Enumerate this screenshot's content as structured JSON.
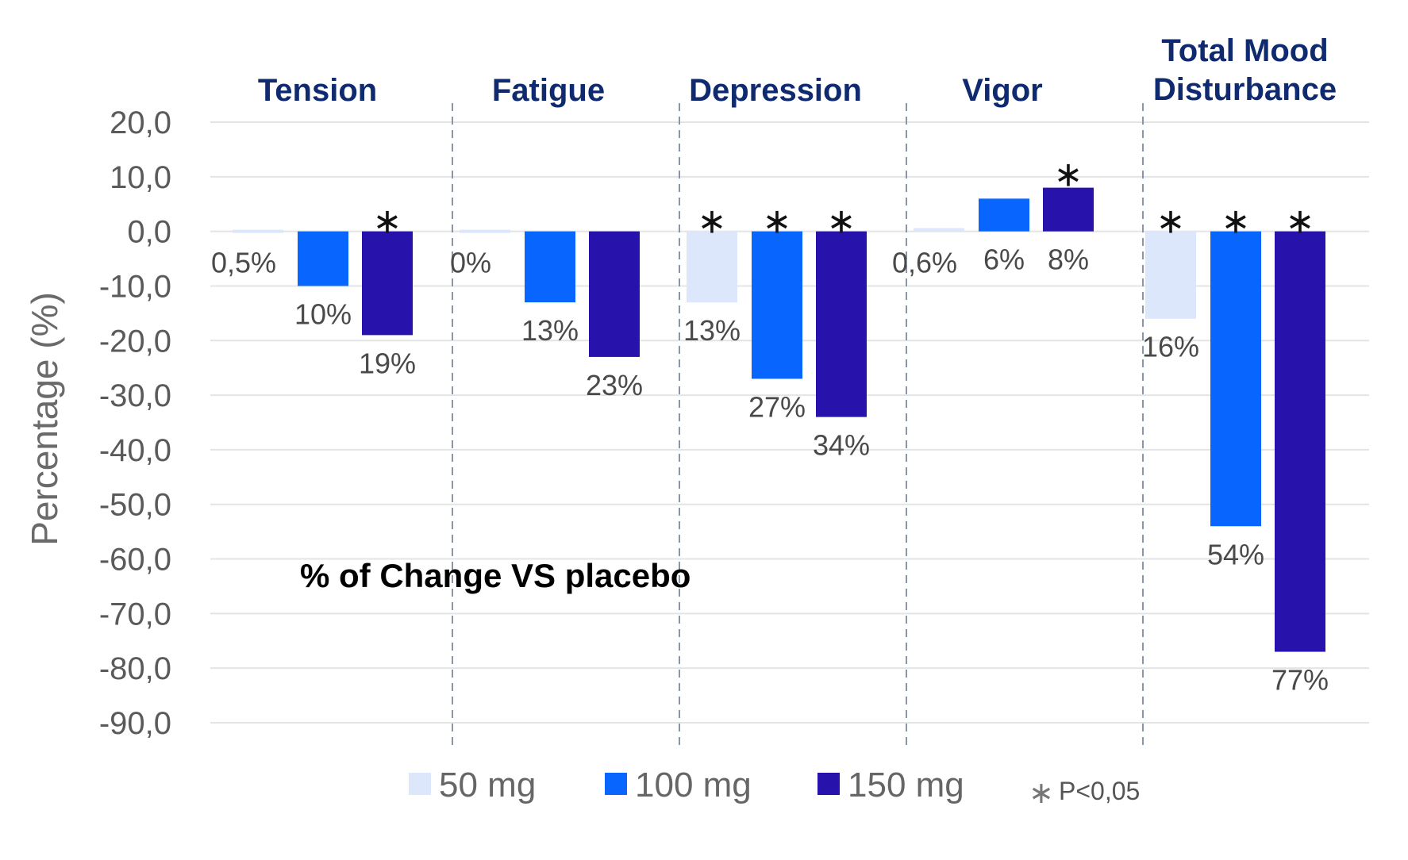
{
  "chart_data": {
    "type": "bar",
    "title": "% of Change VS placebo",
    "ylabel": "Percentage (%)",
    "xlabel": "",
    "ylim": [
      -90,
      20
    ],
    "yticks": [
      20,
      10,
      0,
      -10,
      -20,
      -30,
      -40,
      -50,
      -60,
      -70,
      -80,
      -90
    ],
    "ytick_labels": [
      "20,0",
      "10,0",
      "0,0",
      "-10,0",
      "-20,0",
      "-30,0",
      "-40,0",
      "-50,0",
      "-60,0",
      "-70,0",
      "-80,0",
      "-90,0"
    ],
    "grid": true,
    "categories": [
      [
        "Tension"
      ],
      [
        "Fatigue"
      ],
      [
        "Depression"
      ],
      [
        "Vigor"
      ],
      [
        "Total Mood",
        "Disturbance"
      ]
    ],
    "series": [
      {
        "name": "50 mg",
        "color": "#dce7fb",
        "values": [
          -0.5,
          0,
          -13,
          0.6,
          -16
        ],
        "labels": [
          "0,5%",
          "0%",
          "13%",
          "0,6%",
          "16%"
        ],
        "significant": [
          false,
          false,
          true,
          false,
          true
        ]
      },
      {
        "name": "100 mg",
        "color": "#0866ff",
        "values": [
          -10,
          -13,
          -27,
          6,
          -54
        ],
        "labels": [
          "10%",
          "13%",
          "27%",
          "6%",
          "54%"
        ],
        "significant": [
          false,
          false,
          true,
          false,
          true
        ]
      },
      {
        "name": "150 mg",
        "color": "#2712ac",
        "values": [
          -19,
          -23,
          -34,
          8,
          -77
        ],
        "labels": [
          "19%",
          "23%",
          "34%",
          "8%",
          "77%"
        ],
        "significant": [
          true,
          false,
          true,
          true,
          true
        ]
      }
    ],
    "significance_symbol": "∗",
    "significance_note": "P<0,05",
    "legend_position": "bottom"
  }
}
